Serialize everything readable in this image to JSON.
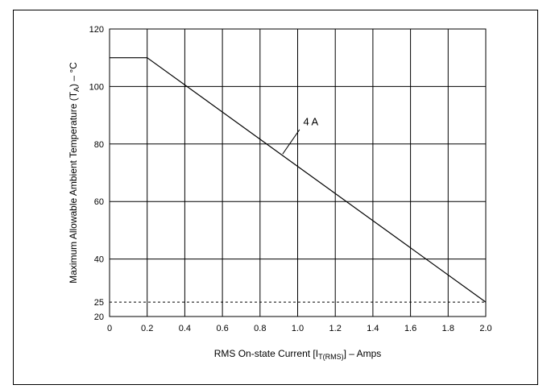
{
  "chart_data": {
    "type": "line",
    "title": "",
    "xlabel": {
      "main": "RMS On-state Current [I",
      "sub": "T(RMS)",
      "tail": "] – Amps"
    },
    "ylabel": {
      "main": "Maximum Allowable Ambient Temperature (T",
      "sub": "A",
      "tail": ") – °C"
    },
    "xlim": [
      0,
      2.0
    ],
    "ylim": [
      20,
      120
    ],
    "x_ticks": [
      {
        "value": 0,
        "label": "0"
      },
      {
        "value": 0.2,
        "label": "0.2"
      },
      {
        "value": 0.4,
        "label": "0.4"
      },
      {
        "value": 0.6,
        "label": "0.6"
      },
      {
        "value": 0.8,
        "label": "0.8"
      },
      {
        "value": 1.0,
        "label": "1.0"
      },
      {
        "value": 1.2,
        "label": "1.2"
      },
      {
        "value": 1.4,
        "label": "1.4"
      },
      {
        "value": 1.6,
        "label": "1.6"
      },
      {
        "value": 1.8,
        "label": "1.8"
      },
      {
        "value": 2.0,
        "label": "2.0"
      }
    ],
    "y_ticks": [
      {
        "value": 20,
        "label": "20"
      },
      {
        "value": 25,
        "label": "25"
      },
      {
        "value": 40,
        "label": "40"
      },
      {
        "value": 60,
        "label": "60"
      },
      {
        "value": 80,
        "label": "80"
      },
      {
        "value": 100,
        "label": "100"
      },
      {
        "value": 120,
        "label": "120"
      }
    ],
    "grid": true,
    "series": [
      {
        "name": "4 A",
        "color": "#000000",
        "x": [
          0,
          0.2,
          2.0
        ],
        "y": [
          110,
          110,
          25
        ]
      }
    ],
    "reference_line": {
      "y": 25,
      "style": "dashed",
      "color": "#000000"
    },
    "annotation": {
      "text": "4 A",
      "text_at": {
        "x": 1.07,
        "y": 86.5
      },
      "leader_from": {
        "x": 1.01,
        "y": 85
      },
      "leader_to": {
        "x": 0.92,
        "y": 76.5
      }
    }
  }
}
